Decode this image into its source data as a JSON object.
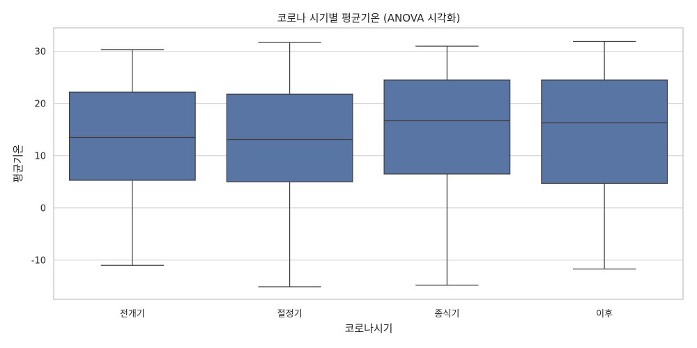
{
  "chart_data": {
    "type": "box",
    "title": "코로나 시기별 평균기온 (ANOVA 시각화)",
    "xlabel": "코로나시기",
    "ylabel": "평균기온",
    "ylim": [
      -17.5,
      34.5
    ],
    "yticks": [
      30,
      20,
      10,
      0,
      -10
    ],
    "ytick_labels": [
      "30",
      "20",
      "10",
      "0",
      "-10"
    ],
    "grid": true,
    "box_color": "#5975a4",
    "line_color": "#3d3d3d",
    "grid_color": "#cccccc",
    "categories": [
      "전개기",
      "절정기",
      "종식기",
      "이후"
    ],
    "boxes": [
      {
        "min": -11.0,
        "q1": 5.3,
        "median": 13.5,
        "q3": 22.2,
        "max": 30.3
      },
      {
        "min": -15.1,
        "q1": 5.0,
        "median": 13.1,
        "q3": 21.8,
        "max": 31.7
      },
      {
        "min": -14.8,
        "q1": 6.5,
        "median": 16.7,
        "q3": 24.5,
        "max": 31.0
      },
      {
        "min": -11.7,
        "q1": 4.7,
        "median": 16.3,
        "q3": 24.5,
        "max": 31.9
      }
    ]
  }
}
